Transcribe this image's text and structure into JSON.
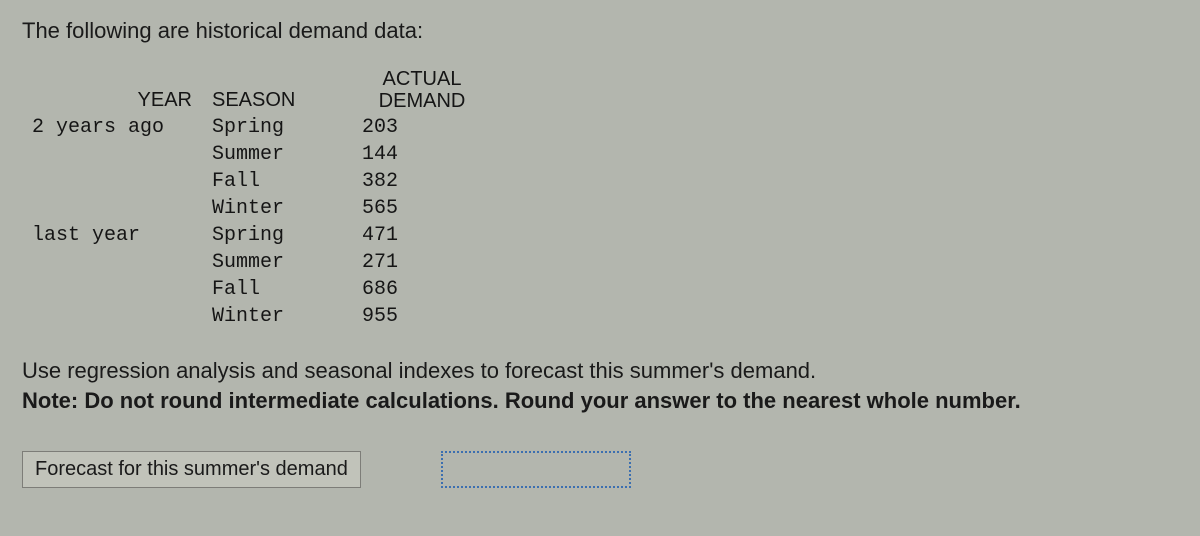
{
  "intro": "The following are historical demand data:",
  "table": {
    "headers": {
      "year": "YEAR",
      "season": "SEASON",
      "demand_top": "ACTUAL",
      "demand_bottom": "DEMAND"
    },
    "rows": [
      {
        "year": "2 years ago",
        "season": "Spring",
        "demand": "203"
      },
      {
        "year": "",
        "season": "Summer",
        "demand": "144"
      },
      {
        "year": "",
        "season": "Fall",
        "demand": "382"
      },
      {
        "year": "",
        "season": "Winter",
        "demand": "565"
      },
      {
        "year": "last year",
        "season": "Spring",
        "demand": "471"
      },
      {
        "year": "",
        "season": "Summer",
        "demand": "271"
      },
      {
        "year": "",
        "season": "Fall",
        "demand": "686"
      },
      {
        "year": "",
        "season": "Winter",
        "demand": "955"
      }
    ]
  },
  "instructions": {
    "line1": "Use regression analysis and seasonal indexes to forecast this summer's demand.",
    "note_label": "Note:",
    "note_text": " Do not round intermediate calculations. Round your answer to the nearest whole number."
  },
  "answer": {
    "label": "Forecast for this summer's demand",
    "value": ""
  }
}
